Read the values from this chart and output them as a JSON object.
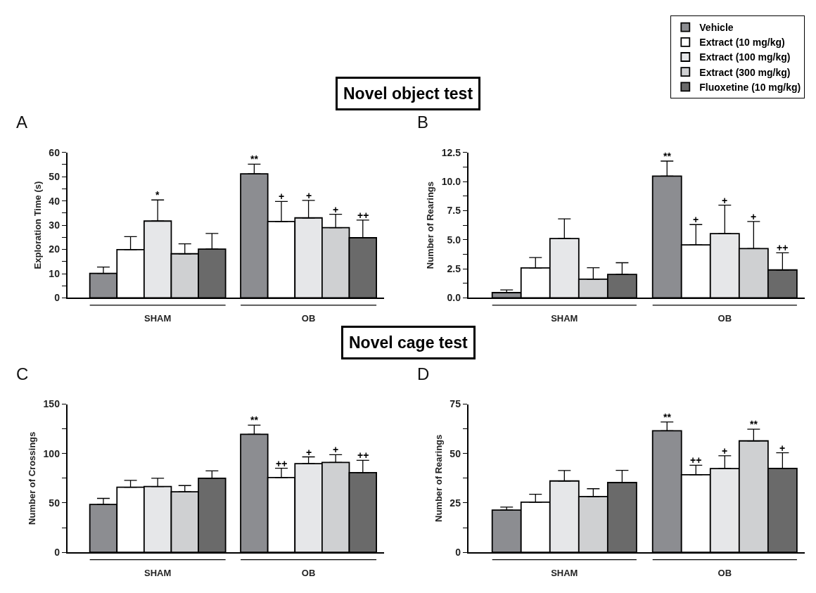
{
  "chart_data": [
    {
      "type": "bar",
      "title": "A",
      "annotations": [
        "Novel object test"
      ],
      "ylabel": "Exploration Time (s)",
      "categories": [
        "SHAM",
        "OB"
      ],
      "ylim": [
        0,
        60
      ],
      "yticks": [
        0,
        {
          "value": 5,
          "label": null
        },
        10,
        {
          "value": 15,
          "label": null
        },
        20,
        {
          "value": 25,
          "label": null
        },
        30,
        {
          "value": 35,
          "label": null
        },
        40,
        {
          "value": 45,
          "label": null
        },
        50,
        {
          "value": 55,
          "label": null
        },
        60
      ],
      "series": [
        {
          "color": "#8c8d91",
          "values": [
            10.1,
            51.2
          ],
          "errors": [
            [
              10.1,
              12.7
            ],
            [
              51.2,
              55.2
            ]
          ],
          "value_labels": [
            null,
            "**"
          ]
        },
        {
          "color": "#ffffff",
          "values": [
            19.9,
            31.5
          ],
          "errors": [
            [
              19.9,
              25.3
            ],
            [
              31.5,
              39.8
            ]
          ],
          "value_labels": [
            null,
            "+"
          ]
        },
        {
          "color": "#e6e7e9",
          "values": [
            31.7,
            33.0
          ],
          "errors": [
            [
              31.7,
              40.4
            ],
            [
              33.0,
              40.2
            ]
          ],
          "value_labels": [
            "*",
            "+"
          ]
        },
        {
          "color": "#cfd0d2",
          "values": [
            18.2,
            29.0
          ],
          "errors": [
            [
              18.2,
              22.3
            ],
            [
              29.0,
              34.5
            ]
          ],
          "value_labels": [
            null,
            "+"
          ]
        },
        {
          "color": "#6a6a6a",
          "values": [
            20.1,
            24.8
          ],
          "errors": [
            [
              20.1,
              26.6
            ],
            [
              24.8,
              32.1
            ]
          ],
          "value_labels": [
            null,
            "++"
          ]
        }
      ]
    },
    {
      "type": "bar",
      "title": "B",
      "legend": "top right",
      "ylabel": "Number of Rearings",
      "categories": [
        "SHAM",
        "OB"
      ],
      "ylim": [
        0,
        12.5
      ],
      "yticks": [
        {
          "value": 0,
          "label": "0.0"
        },
        {
          "value": 1.25,
          "label": null
        },
        {
          "value": 2.5,
          "label": "2.5"
        },
        {
          "value": 3.75,
          "label": null
        },
        {
          "value": 5,
          "label": "5.0"
        },
        {
          "value": 6.25,
          "label": null
        },
        {
          "value": 7.5,
          "label": "7.5"
        },
        {
          "value": 8.75,
          "label": null
        },
        {
          "value": 10,
          "label": "10.0"
        },
        {
          "value": 11.25,
          "label": null
        },
        {
          "value": 12.5,
          "label": "12.5"
        }
      ],
      "series": [
        {
          "name": "Vehicle",
          "color": "#8c8d91",
          "values": [
            0.45,
            10.47
          ],
          "errors": [
            [
              0.45,
              0.69
            ],
            [
              10.47,
              11.76
            ]
          ],
          "value_labels": [
            null,
            "**"
          ]
        },
        {
          "name": "Extract (10 mg/kg)",
          "color": "#ffffff",
          "values": [
            2.57,
            4.56
          ],
          "errors": [
            [
              2.57,
              3.47
            ],
            [
              4.56,
              6.3
            ]
          ],
          "value_labels": [
            null,
            "+"
          ]
        },
        {
          "name": "Extract (100 mg/kg)",
          "color": "#e6e7e9",
          "values": [
            5.1,
            5.52
          ],
          "errors": [
            [
              5.1,
              6.79
            ],
            [
              5.52,
              7.97
            ]
          ],
          "value_labels": [
            null,
            "+"
          ]
        },
        {
          "name": "Extract (300 mg/kg)",
          "color": "#cfd0d2",
          "values": [
            1.61,
            4.24
          ],
          "errors": [
            [
              1.61,
              2.59
            ],
            [
              4.24,
              6.57
            ]
          ],
          "value_labels": [
            null,
            "+"
          ]
        },
        {
          "name": "Fluoxetine (10 mg/kg)",
          "color": "#6a6a6a",
          "values": [
            2.01,
            2.4
          ],
          "errors": [
            [
              2.01,
              3.02
            ],
            [
              2.4,
              3.88
            ]
          ],
          "value_labels": [
            null,
            "++"
          ]
        }
      ]
    },
    {
      "type": "bar",
      "title": "C",
      "annotations": [
        "Novel cage test"
      ],
      "ylabel": "Number of Crossings",
      "categories": [
        "SHAM",
        "OB"
      ],
      "ylim": [
        0,
        150
      ],
      "yticks": [
        0,
        {
          "value": 25,
          "label": null
        },
        50,
        {
          "value": 75,
          "label": null
        },
        100,
        {
          "value": 125,
          "label": null
        },
        150
      ],
      "series": [
        {
          "color": "#8c8d91",
          "values": [
            48.4,
            119.5
          ],
          "errors": [
            [
              48.4,
              54.6
            ],
            [
              119.5,
              128.8
            ]
          ],
          "value_labels": [
            null,
            "**"
          ]
        },
        {
          "color": "#ffffff",
          "values": [
            65.9,
            75.7
          ],
          "errors": [
            [
              65.9,
              72.8
            ],
            [
              75.7,
              85.1
            ]
          ],
          "value_labels": [
            null,
            "++"
          ]
        },
        {
          "color": "#e6e7e9",
          "values": [
            66.6,
            89.7
          ],
          "errors": [
            [
              66.6,
              75.0
            ],
            [
              89.7,
              96.6
            ]
          ],
          "value_labels": [
            null,
            "+"
          ]
        },
        {
          "color": "#cfd0d2",
          "values": [
            61.2,
            91.0
          ],
          "errors": [
            [
              61.2,
              67.6
            ],
            [
              91.0,
              98.8
            ]
          ],
          "value_labels": [
            null,
            "+"
          ]
        },
        {
          "color": "#6a6a6a",
          "values": [
            75.0,
            80.6
          ],
          "errors": [
            [
              75.0,
              82.4
            ],
            [
              80.6,
              93.2
            ]
          ],
          "value_labels": [
            null,
            "++"
          ]
        }
      ]
    },
    {
      "type": "bar",
      "title": "D",
      "ylabel": "Number of Rearings",
      "categories": [
        "SHAM",
        "OB"
      ],
      "ylim": [
        0,
        75
      ],
      "yticks": [
        0,
        {
          "value": 12.5,
          "label": null
        },
        25,
        {
          "value": 37.5,
          "label": null
        },
        50,
        {
          "value": 62.5,
          "label": null
        },
        75
      ],
      "series": [
        {
          "color": "#8c8d91",
          "values": [
            21.4,
            61.5
          ],
          "errors": [
            [
              21.4,
              22.9
            ],
            [
              61.5,
              66.0
            ]
          ],
          "value_labels": [
            null,
            "**"
          ]
        },
        {
          "color": "#ffffff",
          "values": [
            25.4,
            39.3
          ],
          "errors": [
            [
              25.4,
              29.4
            ],
            [
              39.3,
              44.1
            ]
          ],
          "value_labels": [
            null,
            "++"
          ]
        },
        {
          "color": "#e6e7e9",
          "values": [
            36.1,
            42.4
          ],
          "errors": [
            [
              36.1,
              41.4
            ],
            [
              42.4,
              48.9
            ]
          ],
          "value_labels": [
            null,
            "+"
          ]
        },
        {
          "color": "#cfd0d2",
          "values": [
            28.2,
            56.4
          ],
          "errors": [
            [
              28.2,
              32.2
            ],
            [
              56.4,
              62.3
            ]
          ],
          "value_labels": [
            null,
            "**"
          ]
        },
        {
          "color": "#6a6a6a",
          "values": [
            35.3,
            42.5
          ],
          "errors": [
            [
              35.3,
              41.5
            ],
            [
              42.5,
              50.4
            ]
          ],
          "value_labels": [
            null,
            "+"
          ]
        }
      ]
    }
  ]
}
